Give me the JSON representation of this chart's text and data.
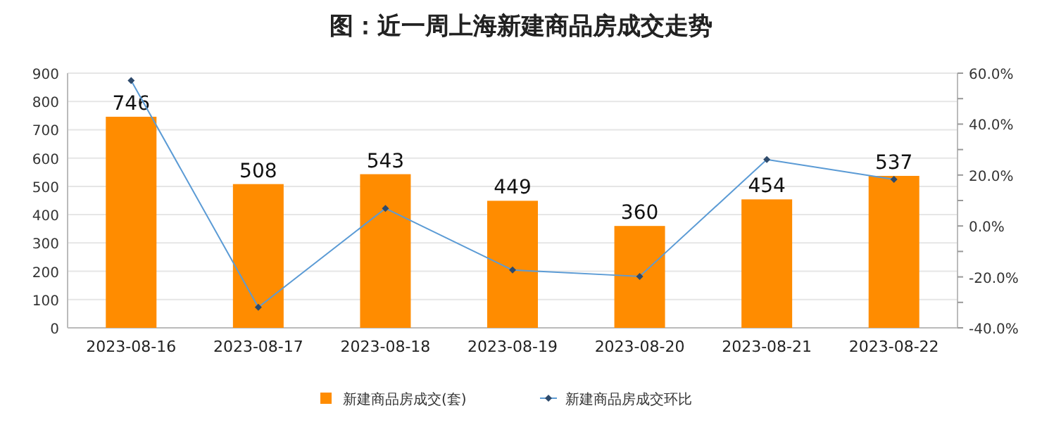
{
  "chart_data": {
    "type": "bar",
    "title": "图：近一周上海新建商品房成交走势",
    "categories": [
      "2023-08-16",
      "2023-08-17",
      "2023-08-18",
      "2023-08-19",
      "2023-08-20",
      "2023-08-21",
      "2023-08-22"
    ],
    "series": [
      {
        "name": "新建商品房成交(套)",
        "color": "#ff8c00",
        "values": [
          746,
          508,
          543,
          449,
          360,
          454,
          537
        ],
        "value_labels": [
          "746",
          "508",
          "543",
          "449",
          "360",
          "454",
          "537"
        ]
      },
      {
        "name": "新建商品房成交环比",
        "type": "line",
        "axis": "y2",
        "color": "#5b9bd5",
        "marker": "diamond",
        "values": [
          57.1,
          -31.9,
          6.9,
          -17.3,
          -19.8,
          26.1,
          18.3
        ]
      }
    ],
    "ylim": [
      0,
      900
    ],
    "yticks": [
      0,
      100,
      200,
      300,
      400,
      500,
      600,
      700,
      800,
      900
    ],
    "y2lim": [
      -40,
      60
    ],
    "y2ticks": [
      {
        "value": -40,
        "label": "-40.0%"
      },
      {
        "value": -20,
        "label": "-20.0%"
      },
      {
        "value": 0,
        "label": "0.0%"
      },
      {
        "value": 20,
        "label": "20.0%"
      },
      {
        "value": 40,
        "label": "40.0%"
      },
      {
        "value": 60,
        "label": "60.0%"
      }
    ],
    "grid": "y",
    "legend": "bottom"
  }
}
